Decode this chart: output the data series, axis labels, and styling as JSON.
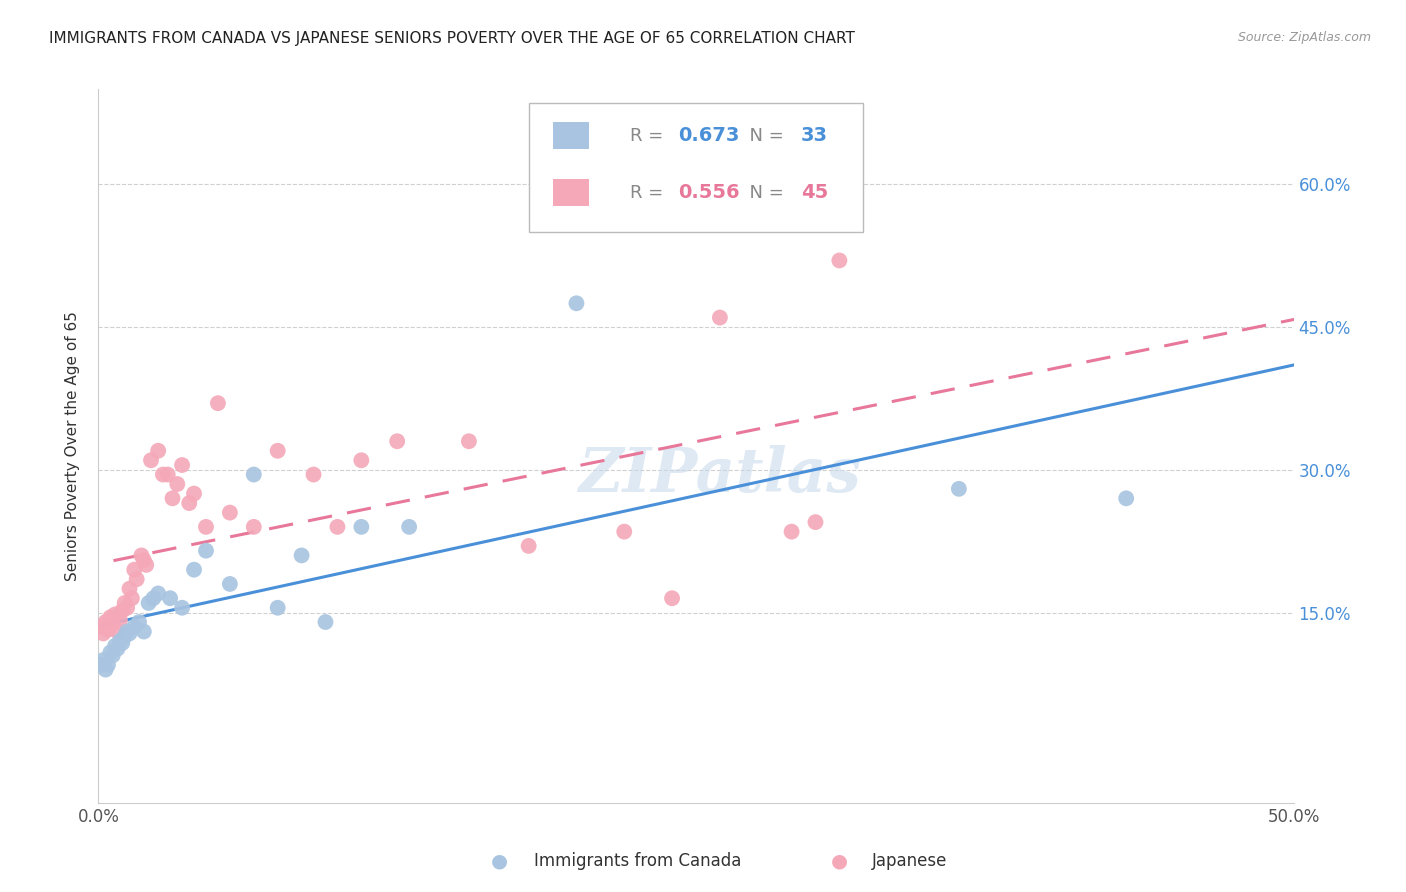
{
  "title": "IMMIGRANTS FROM CANADA VS JAPANESE SENIORS POVERTY OVER THE AGE OF 65 CORRELATION CHART",
  "source": "Source: ZipAtlas.com",
  "ylabel": "Seniors Poverty Over the Age of 65",
  "xlim": [
    0.0,
    0.5
  ],
  "ylim": [
    -0.05,
    0.7
  ],
  "xtick_positions": [
    0.0,
    0.1,
    0.2,
    0.3,
    0.4,
    0.5
  ],
  "xtick_labels": [
    "0.0%",
    "",
    "",
    "",
    "",
    "50.0%"
  ],
  "ytick_positions": [
    0.15,
    0.3,
    0.45,
    0.6
  ],
  "ytick_labels": [
    "15.0%",
    "30.0%",
    "45.0%",
    "60.0%"
  ],
  "canada_color": "#a8c4e0",
  "japanese_color": "#f4a8b8",
  "canada_line_color": "#4a90d9",
  "japanese_line_color": "#e8789a",
  "legend_canada_R": "0.673",
  "legend_canada_N": "33",
  "legend_japanese_R": "0.556",
  "legend_japanese_N": "45",
  "watermark": "ZIPatlas",
  "canada_x": [
    0.001,
    0.002,
    0.003,
    0.004,
    0.005,
    0.006,
    0.007,
    0.008,
    0.009,
    0.01,
    0.011,
    0.012,
    0.013,
    0.015,
    0.017,
    0.019,
    0.021,
    0.023,
    0.025,
    0.03,
    0.035,
    0.04,
    0.045,
    0.055,
    0.065,
    0.075,
    0.085,
    0.095,
    0.11,
    0.13,
    0.2,
    0.36,
    0.43
  ],
  "canada_y": [
    0.095,
    0.1,
    0.09,
    0.095,
    0.108,
    0.105,
    0.115,
    0.112,
    0.12,
    0.118,
    0.125,
    0.13,
    0.128,
    0.135,
    0.14,
    0.13,
    0.16,
    0.165,
    0.17,
    0.165,
    0.155,
    0.195,
    0.215,
    0.18,
    0.295,
    0.155,
    0.21,
    0.14,
    0.24,
    0.24,
    0.475,
    0.28,
    0.27
  ],
  "japanese_x": [
    0.001,
    0.002,
    0.003,
    0.004,
    0.005,
    0.006,
    0.007,
    0.008,
    0.009,
    0.01,
    0.011,
    0.012,
    0.013,
    0.014,
    0.015,
    0.016,
    0.018,
    0.019,
    0.02,
    0.022,
    0.025,
    0.027,
    0.029,
    0.031,
    0.033,
    0.035,
    0.038,
    0.04,
    0.045,
    0.05,
    0.055,
    0.065,
    0.075,
    0.09,
    0.1,
    0.11,
    0.125,
    0.155,
    0.18,
    0.22,
    0.24,
    0.26,
    0.29,
    0.3,
    0.31
  ],
  "japanese_y": [
    0.135,
    0.128,
    0.14,
    0.132,
    0.145,
    0.138,
    0.148,
    0.13,
    0.142,
    0.152,
    0.16,
    0.155,
    0.175,
    0.165,
    0.195,
    0.185,
    0.21,
    0.205,
    0.2,
    0.31,
    0.32,
    0.295,
    0.295,
    0.27,
    0.285,
    0.305,
    0.265,
    0.275,
    0.24,
    0.37,
    0.255,
    0.24,
    0.32,
    0.295,
    0.24,
    0.31,
    0.33,
    0.33,
    0.22,
    0.235,
    0.165,
    0.46,
    0.235,
    0.245,
    0.52
  ]
}
